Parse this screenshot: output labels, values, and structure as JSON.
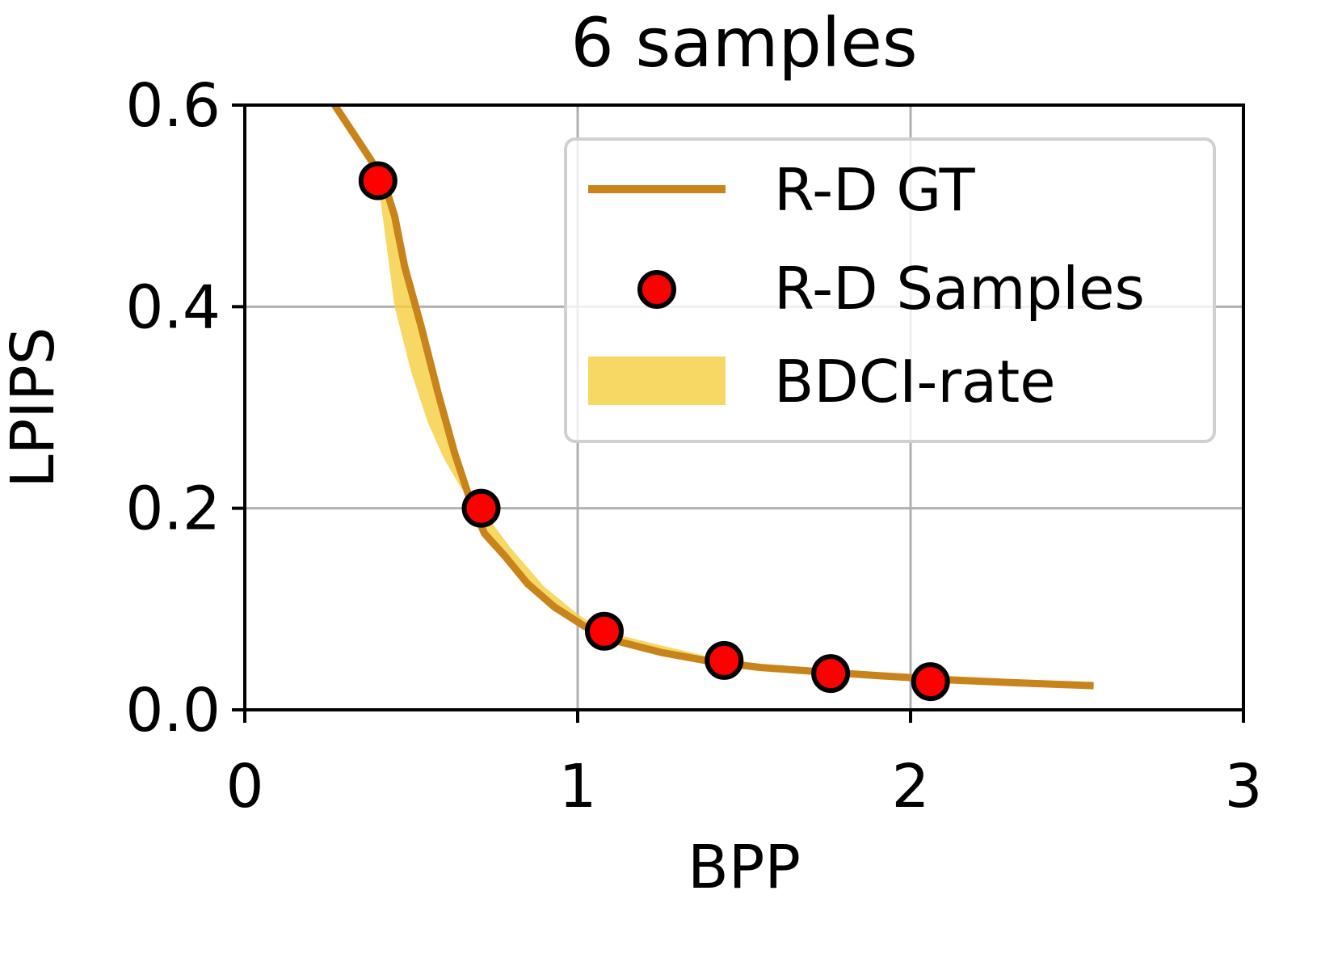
{
  "chart_data": {
    "type": "line",
    "title": "6 samples",
    "xlabel": "BPP",
    "ylabel": "LPIPS",
    "xlim": [
      0,
      3
    ],
    "ylim": [
      0,
      0.6
    ],
    "xticks": [
      0,
      1,
      2,
      3
    ],
    "yticks": [
      0.0,
      0.2,
      0.4,
      0.6
    ],
    "xtick_labels": [
      "0",
      "1",
      "2",
      "3"
    ],
    "ytick_labels": [
      "0.0",
      "0.2",
      "0.4",
      "0.6"
    ],
    "grid": true,
    "legend_position": "upper-right",
    "colors": {
      "gt_line": "#C8841A",
      "samples_fill": "#FF0000",
      "samples_edge": "#000000",
      "band_fill": "#F5CE3E",
      "grid": "#B0B0B0"
    },
    "series": [
      {
        "name": "R-D GT",
        "kind": "line",
        "x": [
          0.27,
          0.3,
          0.34,
          0.38,
          0.42,
          0.45,
          0.48,
          0.53,
          0.58,
          0.63,
          0.68,
          0.72,
          0.78,
          0.85,
          0.93,
          1.02,
          1.12,
          1.25,
          1.4,
          1.55,
          1.72,
          1.9,
          2.1,
          2.3,
          2.55
        ],
        "y": [
          0.6,
          0.585,
          0.565,
          0.545,
          0.522,
          0.49,
          0.44,
          0.38,
          0.315,
          0.255,
          0.205,
          0.175,
          0.153,
          0.125,
          0.102,
          0.083,
          0.068,
          0.057,
          0.048,
          0.042,
          0.038,
          0.034,
          0.03,
          0.027,
          0.024
        ]
      },
      {
        "name": "R-D Samples",
        "kind": "scatter",
        "x": [
          0.4,
          0.71,
          1.08,
          1.44,
          1.76,
          2.06
        ],
        "y": [
          0.525,
          0.2,
          0.078,
          0.049,
          0.036,
          0.028
        ]
      },
      {
        "name": "BDCI-rate",
        "kind": "band",
        "x": [
          0.4,
          0.45,
          0.5,
          0.55,
          0.6,
          0.65,
          0.71,
          0.8,
          0.9,
          1.0,
          1.08,
          1.2,
          1.44,
          1.76,
          2.06
        ],
        "y": [
          0.525,
          0.4,
          0.335,
          0.285,
          0.248,
          0.22,
          0.2,
          0.16,
          0.122,
          0.095,
          0.078,
          0.068,
          0.049,
          0.036,
          0.028
        ]
      }
    ]
  }
}
